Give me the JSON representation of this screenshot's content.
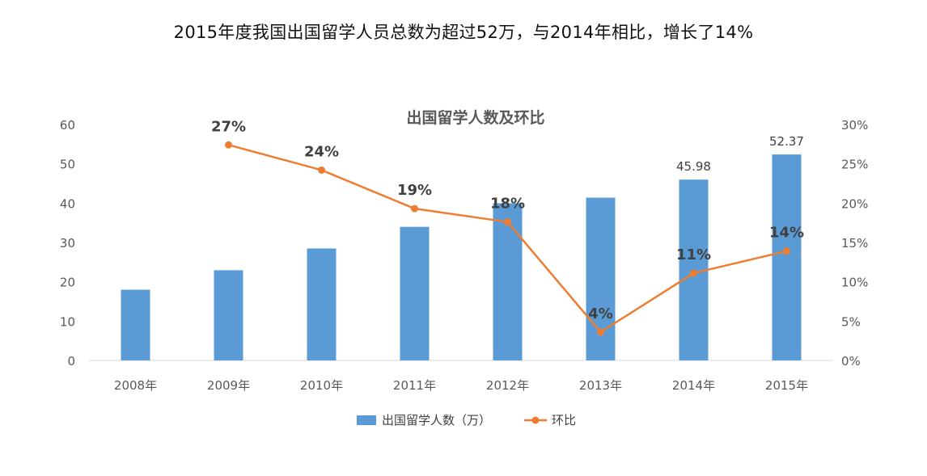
{
  "headline": "2015年度我国出国留学人员总数为超过52万，与2014年相比，增长了14%",
  "chart_data": {
    "type": "bar+line",
    "title": "出国留学人数及环比",
    "categories": [
      "2008年",
      "2009年",
      "2010年",
      "2011年",
      "2012年",
      "2013年",
      "2014年",
      "2015年"
    ],
    "series": [
      {
        "name": "出国留学人数（万）",
        "type": "bar",
        "axis": "left",
        "color": "#5B9BD5",
        "values": [
          17.98,
          22.93,
          28.47,
          33.97,
          39.96,
          41.39,
          45.98,
          52.37
        ],
        "data_labels": [
          null,
          null,
          null,
          null,
          null,
          null,
          "45.98",
          "52.37"
        ]
      },
      {
        "name": "环比",
        "type": "line",
        "axis": "right",
        "color": "#ED7D31",
        "values": [
          null,
          27.4,
          24.2,
          19.3,
          17.6,
          3.6,
          11.1,
          13.9
        ],
        "data_labels": [
          null,
          "27%",
          "24%",
          "19%",
          "18%",
          "4%",
          "11%",
          "14%"
        ]
      }
    ],
    "y_left": {
      "min": 0,
      "max": 60,
      "step": 10,
      "ticks": [
        "0",
        "10",
        "20",
        "30",
        "40",
        "50",
        "60"
      ]
    },
    "y_right": {
      "min": 0,
      "max": 30,
      "step": 5,
      "ticks": [
        "0%",
        "5%",
        "10%",
        "15%",
        "20%",
        "25%",
        "30%"
      ]
    },
    "grid": false,
    "legend": {
      "position": "bottom",
      "items": [
        "出国留学人数（万）",
        "环比"
      ]
    }
  }
}
